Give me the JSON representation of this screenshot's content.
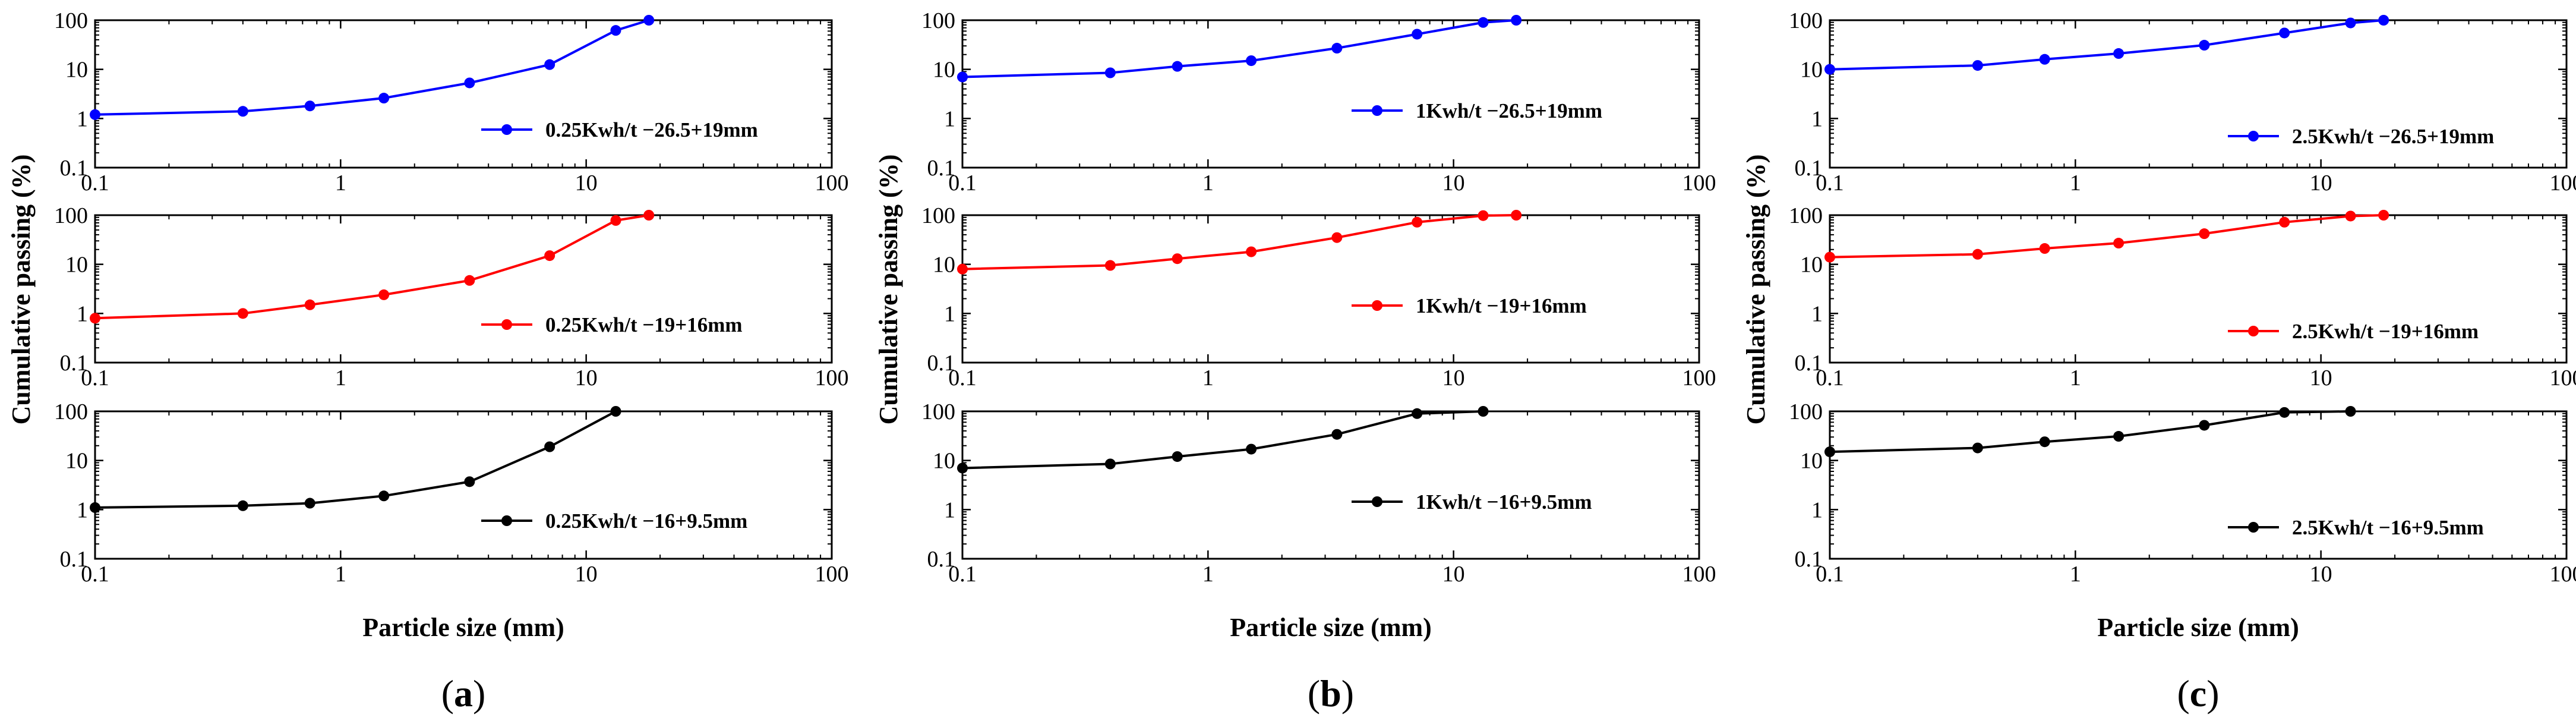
{
  "figure": {
    "panel_labels": [
      "(a)",
      "(b)",
      "(c)"
    ],
    "panel_letters": [
      "a",
      "b",
      "c"
    ]
  },
  "chart_data": [
    {
      "panel": "a",
      "type": "line",
      "x_scale": "log",
      "y_scale": "log",
      "xlabel": "Particle size (mm)",
      "ylabel": "Cumulative passing (%)",
      "xlim": [
        0.1,
        100
      ],
      "ylim": [
        0.1,
        100
      ],
      "x_ticks": [
        "0.1",
        "1",
        "10",
        "100"
      ],
      "y_ticks": [
        "0.1",
        "1",
        "10",
        "100"
      ],
      "subplots": [
        {
          "name": "0.25Kwh/t −26.5+19mm",
          "color": "#0000ff",
          "x": [
            0.1,
            0.4,
            0.75,
            1.5,
            3.35,
            7.1,
            13.2,
            18.0
          ],
          "y": [
            1.2,
            1.4,
            1.8,
            2.6,
            5.3,
            12.5,
            62,
            100
          ]
        },
        {
          "name": "0.25Kwh/t −19+16mm",
          "color": "#ff0000",
          "x": [
            0.1,
            0.4,
            0.75,
            1.5,
            3.35,
            7.1,
            13.2,
            18.0
          ],
          "y": [
            0.8,
            1.0,
            1.5,
            2.4,
            4.7,
            15,
            78,
            100
          ]
        },
        {
          "name": "0.25Kwh/t −16+9.5mm",
          "color": "#000000",
          "x": [
            0.1,
            0.4,
            0.75,
            1.5,
            3.35,
            7.1,
            13.2
          ],
          "y": [
            1.1,
            1.2,
            1.35,
            1.9,
            3.7,
            19,
            100
          ]
        }
      ]
    },
    {
      "panel": "b",
      "type": "line",
      "x_scale": "log",
      "y_scale": "log",
      "xlabel": "Particle size (mm)",
      "ylabel": "Cumulative passing (%)",
      "xlim": [
        0.1,
        100
      ],
      "ylim": [
        0.1,
        100
      ],
      "x_ticks": [
        "0.1",
        "1",
        "10",
        "100"
      ],
      "y_ticks": [
        "0.1",
        "1",
        "10",
        "100"
      ],
      "subplots": [
        {
          "name": "1Kwh/t −26.5+19mm",
          "color": "#0000ff",
          "x": [
            0.1,
            0.4,
            0.75,
            1.5,
            3.35,
            7.1,
            13.2,
            18.0
          ],
          "y": [
            7,
            8.5,
            11.5,
            15,
            27,
            52,
            90,
            100
          ]
        },
        {
          "name": "1Kwh/t −19+16mm",
          "color": "#ff0000",
          "x": [
            0.1,
            0.4,
            0.75,
            1.5,
            3.35,
            7.1,
            13.2,
            18.0
          ],
          "y": [
            8,
            9.5,
            13,
            18,
            35,
            72,
            98,
            100
          ]
        },
        {
          "name": "1Kwh/t −16+9.5mm",
          "color": "#000000",
          "x": [
            0.1,
            0.4,
            0.75,
            1.5,
            3.35,
            7.1,
            13.2
          ],
          "y": [
            7,
            8.5,
            12,
            17,
            34,
            90,
            100
          ]
        }
      ]
    },
    {
      "panel": "c",
      "type": "line",
      "x_scale": "log",
      "y_scale": "log",
      "xlabel": "Particle size (mm)",
      "ylabel": "Cumulative passing (%)",
      "xlim": [
        0.1,
        100
      ],
      "ylim": [
        0.1,
        100
      ],
      "x_ticks": [
        "0.1",
        "1",
        "10",
        "100"
      ],
      "y_ticks": [
        "0.1",
        "1",
        "10",
        "100"
      ],
      "subplots": [
        {
          "name": "2.5Kwh/t −26.5+19mm",
          "color": "#0000ff",
          "x": [
            0.1,
            0.4,
            0.75,
            1.5,
            3.35,
            7.1,
            13.2,
            18.0
          ],
          "y": [
            10,
            12,
            16,
            21,
            31,
            55,
            88,
            100
          ]
        },
        {
          "name": "2.5Kwh/t −19+16mm",
          "color": "#ff0000",
          "x": [
            0.1,
            0.4,
            0.75,
            1.5,
            3.35,
            7.1,
            13.2,
            18.0
          ],
          "y": [
            14,
            16,
            21,
            27,
            42,
            72,
            96,
            100
          ]
        },
        {
          "name": "2.5Kwh/t −16+9.5mm",
          "color": "#000000",
          "x": [
            0.1,
            0.4,
            0.75,
            1.5,
            3.35,
            7.1,
            13.2
          ],
          "y": [
            15,
            18,
            24,
            31,
            52,
            95,
            100
          ]
        }
      ]
    }
  ]
}
